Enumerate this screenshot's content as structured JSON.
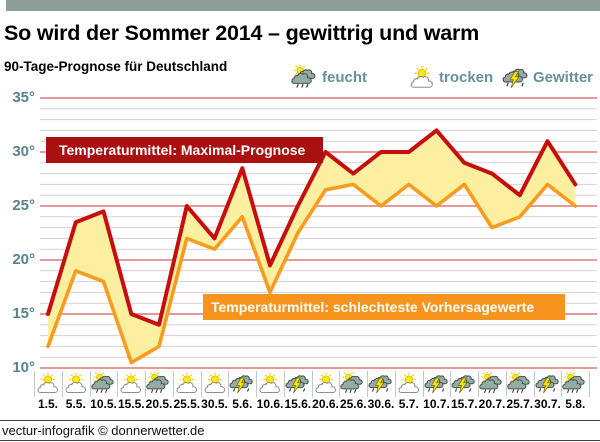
{
  "header": {
    "title": "So wird der Sommer 2014 – gewittrig und warm",
    "subtitle": "90-Tage-Prognose für Deutschland"
  },
  "legend": [
    {
      "label": "feucht",
      "icon": "feucht"
    },
    {
      "label": "trocken",
      "icon": "trocken"
    },
    {
      "label": "Gewitter",
      "icon": "gewitter"
    }
  ],
  "footer": {
    "credit": "vectur-infografik © donnerwetter.de"
  },
  "colors": {
    "topbar": "#8f9d97",
    "grid_major": "#e59a9a",
    "grid_minor": "#d9d1d1",
    "axis_text": "#55838f",
    "legend_text": "#68909d",
    "max_line": "#c70e0e",
    "max_box": "#a91111",
    "min_line": "#f79c1e",
    "min_box": "#f7941e",
    "fill_between": "#fcf0a0",
    "separator": "#b8cdd8"
  },
  "chart_data": {
    "type": "area",
    "title": "So wird der Sommer 2014 – gewittrig und warm",
    "subtitle": "90-Tage-Prognose für Deutschland",
    "categories": [
      "1.5.",
      "5.5.",
      "10.5.",
      "15.5.",
      "20.5.",
      "25.5.",
      "30.5.",
      "5.6.",
      "10.6.",
      "15.6.",
      "20.6.",
      "25.6.",
      "30.6.",
      "5.7.",
      "10.7.",
      "15.7.",
      "20.7.",
      "25.7.",
      "30.7.",
      "5.8."
    ],
    "series": [
      {
        "name": "Temperaturmittel: Maximal-Prognose",
        "color": "#c70e0e",
        "values": [
          15,
          23.5,
          24.5,
          15,
          14,
          25,
          22,
          28.5,
          19.5,
          25,
          30,
          28,
          30,
          30,
          32,
          29,
          28,
          26,
          31,
          27
        ]
      },
      {
        "name": "Temperaturmittel: schlechteste Vorhersagewerte",
        "color": "#f79c1e",
        "values": [
          12,
          19,
          18,
          10.5,
          12,
          22,
          21,
          24,
          17,
          22.5,
          26.5,
          27,
          25,
          27,
          25,
          27,
          23,
          24,
          27,
          25
        ]
      }
    ],
    "fill_between_color": "#fcf0a0",
    "ylabel": "",
    "ylim": [
      10,
      35
    ],
    "ytick_step": 5,
    "ytick_suffix": "°",
    "grid": {
      "major_every_deg": 5,
      "minor_every_deg": 1
    },
    "legend_position": "top-right",
    "weather_icons": [
      "trocken",
      "trocken",
      "feucht",
      "trocken",
      "feucht",
      "trocken",
      "trocken",
      "gewitter",
      "trocken",
      "gewitter",
      "trocken",
      "feucht",
      "gewitter",
      "trocken",
      "gewitter",
      "gewitter",
      "feucht",
      "feucht",
      "gewitter",
      "feucht"
    ]
  }
}
